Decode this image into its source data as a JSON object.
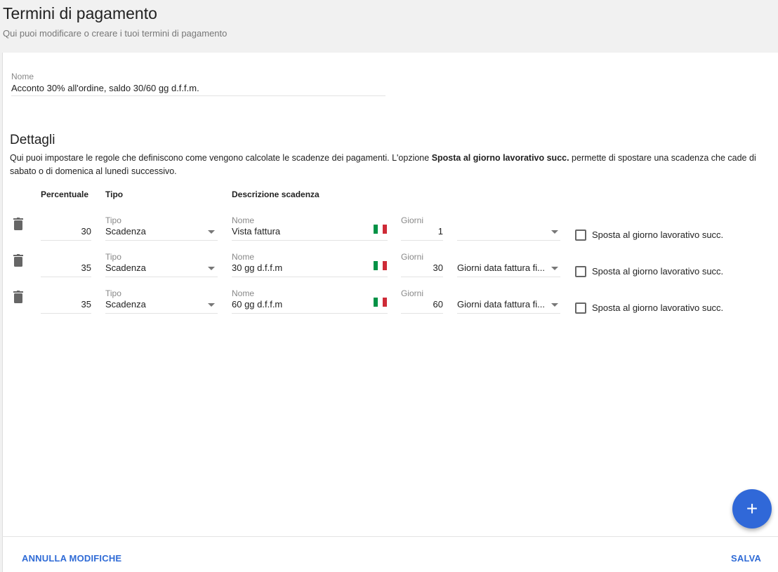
{
  "header": {
    "title": "Termini di pagamento",
    "subtitle": "Qui puoi modificare o creare i tuoi termini di pagamento"
  },
  "name_field": {
    "label": "Nome",
    "value": "Acconto 30% all'ordine, saldo 30/60 gg d.f.f.m."
  },
  "details": {
    "heading": "Dettagli",
    "desc_before": "Qui puoi impostare le regole che definiscono come vengono calcolate le scadenze dei pagamenti. L'opzione ",
    "desc_bold": "Sposta al giorno lavorativo succ.",
    "desc_after": " permette di spostare una scadenza che cade di sabato o di domenica al lunedì successivo."
  },
  "columns": {
    "percent": "Percentuale",
    "type": "Tipo",
    "description": "Descrizione scadenza"
  },
  "rows": [
    {
      "percent": "30",
      "type_label": "Tipo",
      "type": "Scadenza",
      "name_label": "Nome",
      "name": "Vista fattura",
      "days_label": "Giorni",
      "days": "1",
      "mode": "",
      "checkbox_label": "Sposta al giorno lavorativo succ.",
      "checked": false
    },
    {
      "percent": "35",
      "type_label": "Tipo",
      "type": "Scadenza",
      "name_label": "Nome",
      "name": "30 gg d.f.f.m",
      "days_label": "Giorni",
      "days": "30",
      "mode": "Giorni data fattura fi...",
      "checkbox_label": "Sposta al giorno lavorativo succ.",
      "checked": false
    },
    {
      "percent": "35",
      "type_label": "Tipo",
      "type": "Scadenza",
      "name_label": "Nome",
      "name": "60 gg d.f.f.m",
      "days_label": "Giorni",
      "days": "60",
      "mode": "Giorni data fattura fi...",
      "checkbox_label": "Sposta al giorno lavorativo succ.",
      "checked": false
    }
  ],
  "icons": {
    "delete": "trash-icon",
    "language": "italian-flag-icon",
    "add": "plus-icon"
  },
  "footer": {
    "cancel": "ANNULLA MODIFICHE",
    "save": "SALVA",
    "add": "+"
  },
  "colors": {
    "accent": "#3068d8",
    "flag": [
      "#009246",
      "#ffffff",
      "#ce2b37"
    ]
  }
}
